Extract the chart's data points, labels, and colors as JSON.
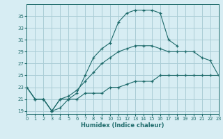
{
  "xlabel": "Humidex (Indice chaleur)",
  "bg_color": "#d7edf3",
  "grid_color": "#aacdd6",
  "line_color": "#1e6b6b",
  "x_values": [
    0,
    1,
    2,
    3,
    4,
    5,
    6,
    7,
    8,
    9,
    10,
    11,
    12,
    13,
    14,
    15,
    16,
    17,
    18,
    19,
    20,
    21,
    22,
    23
  ],
  "line1": [
    23,
    21,
    21,
    19,
    19.5,
    21,
    22,
    25,
    28,
    29.5,
    30.5,
    34,
    35.5,
    36,
    36,
    36,
    35.5,
    31,
    30,
    null,
    null,
    null,
    null,
    null
  ],
  "line2": [
    23,
    21,
    21,
    19,
    21,
    21.5,
    22.5,
    24,
    25.5,
    27,
    28,
    29,
    29.5,
    30,
    30,
    30,
    29.5,
    29,
    29,
    29,
    29,
    28,
    27.5,
    25
  ],
  "line3": [
    23,
    21,
    21,
    19,
    21,
    21,
    21,
    22,
    22,
    22,
    23,
    23,
    23.5,
    24,
    24,
    24,
    25,
    25,
    25,
    25,
    25,
    25,
    25,
    25
  ],
  "xlim": [
    0,
    23
  ],
  "ylim": [
    18.5,
    37
  ],
  "yticks": [
    19,
    21,
    23,
    25,
    27,
    29,
    31,
    33,
    35
  ],
  "xticks": [
    0,
    1,
    2,
    3,
    4,
    5,
    6,
    7,
    8,
    9,
    10,
    11,
    12,
    13,
    14,
    15,
    16,
    17,
    18,
    19,
    20,
    21,
    22,
    23
  ]
}
